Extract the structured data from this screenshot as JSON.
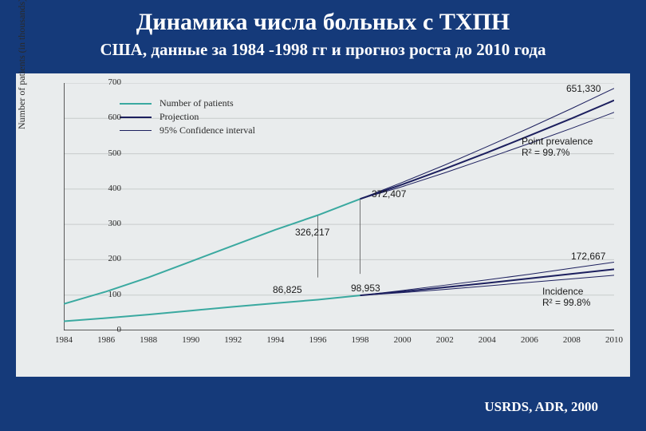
{
  "title": "Динамика числа больных с ТХПН",
  "subtitle": "США, данные за 1984 -1998 гг и прогноз роста до 2010 года",
  "source": "USRDS, ADR, 2000",
  "chart": {
    "type": "line",
    "background_color": "#e9eced",
    "grid_color": "#c8cbcc",
    "axis_color": "#2a2a2a",
    "ylabel": "Number of patients (in thousands)",
    "ylabel_fontsize": 12,
    "tick_fontsize": 11,
    "xlim": [
      1984,
      2010
    ],
    "ylim": [
      0,
      700
    ],
    "ytick_step": 100,
    "xtick_step": 2,
    "legend": {
      "items": [
        {
          "label": "Number of patients",
          "color": "#3aa9a0",
          "width": 2
        },
        {
          "label": "Projection",
          "color": "#1c1f5e",
          "width": 2
        },
        {
          "label": "95% Confidence interval",
          "color": "#1c1f5e",
          "width": 1
        }
      ],
      "fontsize": 12
    },
    "series": {
      "prevalence_actual": {
        "color": "#3aa9a0",
        "width": 2,
        "x": [
          1984,
          1986,
          1988,
          1990,
          1992,
          1994,
          1996,
          1998
        ],
        "y": [
          75,
          110,
          150,
          195,
          240,
          285,
          326,
          372
        ]
      },
      "prevalence_proj": {
        "color": "#1c1f5e",
        "width": 2,
        "x": [
          1998,
          2000,
          2002,
          2004,
          2006,
          2008,
          2010
        ],
        "y": [
          372,
          413,
          457,
          503,
          551,
          600,
          651
        ]
      },
      "prevalence_ci_upper": {
        "color": "#1c1f5e",
        "width": 1,
        "x": [
          1998,
          2000,
          2002,
          2004,
          2006,
          2008,
          2010
        ],
        "y": [
          372,
          419,
          468,
          520,
          573,
          628,
          685
        ]
      },
      "prevalence_ci_lower": {
        "color": "#1c1f5e",
        "width": 1,
        "x": [
          1998,
          2000,
          2002,
          2004,
          2006,
          2008,
          2010
        ],
        "y": [
          372,
          407,
          446,
          487,
          529,
          572,
          617
        ]
      },
      "incidence_actual": {
        "color": "#3aa9a0",
        "width": 2,
        "x": [
          1984,
          1986,
          1988,
          1990,
          1992,
          1994,
          1996,
          1998
        ],
        "y": [
          26,
          35,
          45,
          56,
          67,
          77,
          87,
          99
        ]
      },
      "incidence_proj": {
        "color": "#1c1f5e",
        "width": 2,
        "x": [
          1998,
          2000,
          2002,
          2004,
          2006,
          2008,
          2010
        ],
        "y": [
          99,
          110,
          122,
          134,
          147,
          160,
          173
        ]
      },
      "incidence_ci_upper": {
        "color": "#1c1f5e",
        "width": 1,
        "x": [
          1998,
          2000,
          2002,
          2004,
          2006,
          2008,
          2010
        ],
        "y": [
          99,
          113,
          128,
          143,
          159,
          176,
          193
        ]
      },
      "incidence_ci_lower": {
        "color": "#1c1f5e",
        "width": 1,
        "x": [
          1998,
          2000,
          2002,
          2004,
          2006,
          2008,
          2010
        ],
        "y": [
          99,
          107,
          116,
          126,
          136,
          146,
          156
        ]
      }
    },
    "annotations": {
      "val_326": "326,217",
      "val_372": "372,407",
      "val_651": "651,330",
      "val_86": "86,825",
      "val_98": "98,953",
      "val_172": "172,667",
      "pp_label": "Point prevalence",
      "pp_r2": "R² = 99.7%",
      "inc_label": "Incidence",
      "inc_r2": "R² = 99.8%",
      "annot_fontsize": 12
    }
  },
  "slide_bg": "#153a7a",
  "title_fontsize": 30,
  "subtitle_fontsize": 21,
  "source_fontsize": 17
}
